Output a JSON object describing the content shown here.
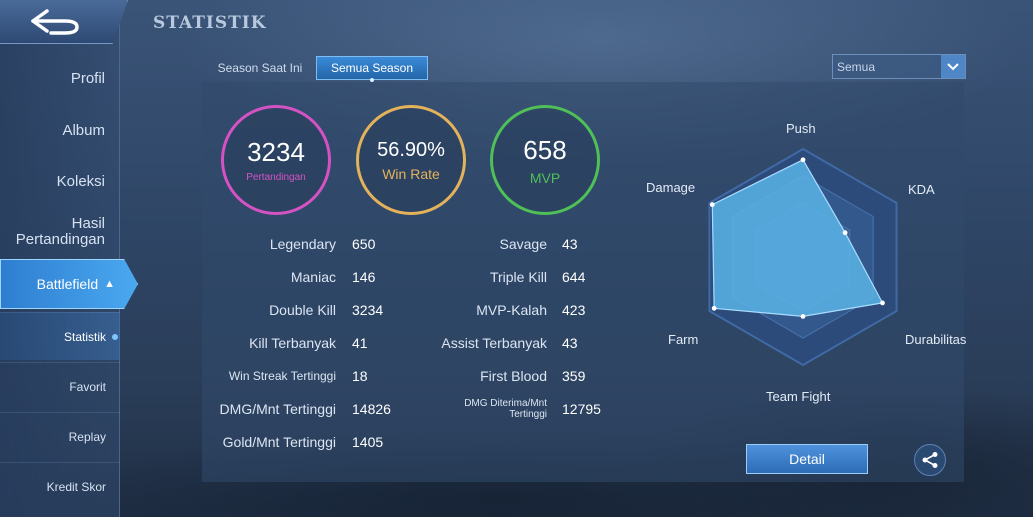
{
  "header": {
    "title": "STATISTIK"
  },
  "sidebar": {
    "items": [
      "Profil",
      "Album",
      "Koleksi",
      "Hasil Pertandingan"
    ],
    "active": "Battlefield",
    "sub_items": [
      "Statistik",
      "Favorit",
      "Replay",
      "Kredit Skor"
    ]
  },
  "tabs": [
    "Season Saat Ini",
    "Semua Season"
  ],
  "active_tab": "Semua Season",
  "filter": {
    "selected": "Semua"
  },
  "summary": {
    "matches": {
      "value": "3234",
      "label": "Pertandingan",
      "color": "#d552c4"
    },
    "win_rate": {
      "value": "56.90%",
      "label": "Win Rate",
      "color": "#e3b25a"
    },
    "mvp": {
      "value": "658",
      "label": "MVP",
      "color": "#4fbf58"
    }
  },
  "stats_left": [
    {
      "label": "Legendary",
      "value": "650"
    },
    {
      "label": "Maniac",
      "value": "146"
    },
    {
      "label": "Double Kill",
      "value": "3234"
    },
    {
      "label": "Kill Terbanyak",
      "value": "41"
    },
    {
      "label": "Win Streak Tertinggi",
      "value": "18"
    },
    {
      "label": "DMG/Mnt Tertinggi",
      "value": "14826"
    },
    {
      "label": "Gold/Mnt Tertinggi",
      "value": "1405"
    }
  ],
  "stats_right": [
    {
      "label": "Savage",
      "value": "43"
    },
    {
      "label": "Triple Kill",
      "value": "644"
    },
    {
      "label": "MVP-Kalah",
      "value": "423"
    },
    {
      "label": "Assist Terbanyak",
      "value": "43"
    },
    {
      "label": "First Blood",
      "value": "359"
    },
    {
      "label": "DMG Diterima/Mnt Tertinggi",
      "value": "12795"
    }
  ],
  "radar": {
    "axes": [
      "Push",
      "KDA",
      "Durabilitas",
      "Team Fight",
      "Farm",
      "Damage"
    ],
    "values": [
      0.9,
      0.45,
      0.85,
      0.55,
      0.95,
      0.97
    ],
    "fill_color": "#5ab4e6",
    "grid_color": "#2c4a7a"
  },
  "buttons": {
    "detail": "Detail"
  }
}
